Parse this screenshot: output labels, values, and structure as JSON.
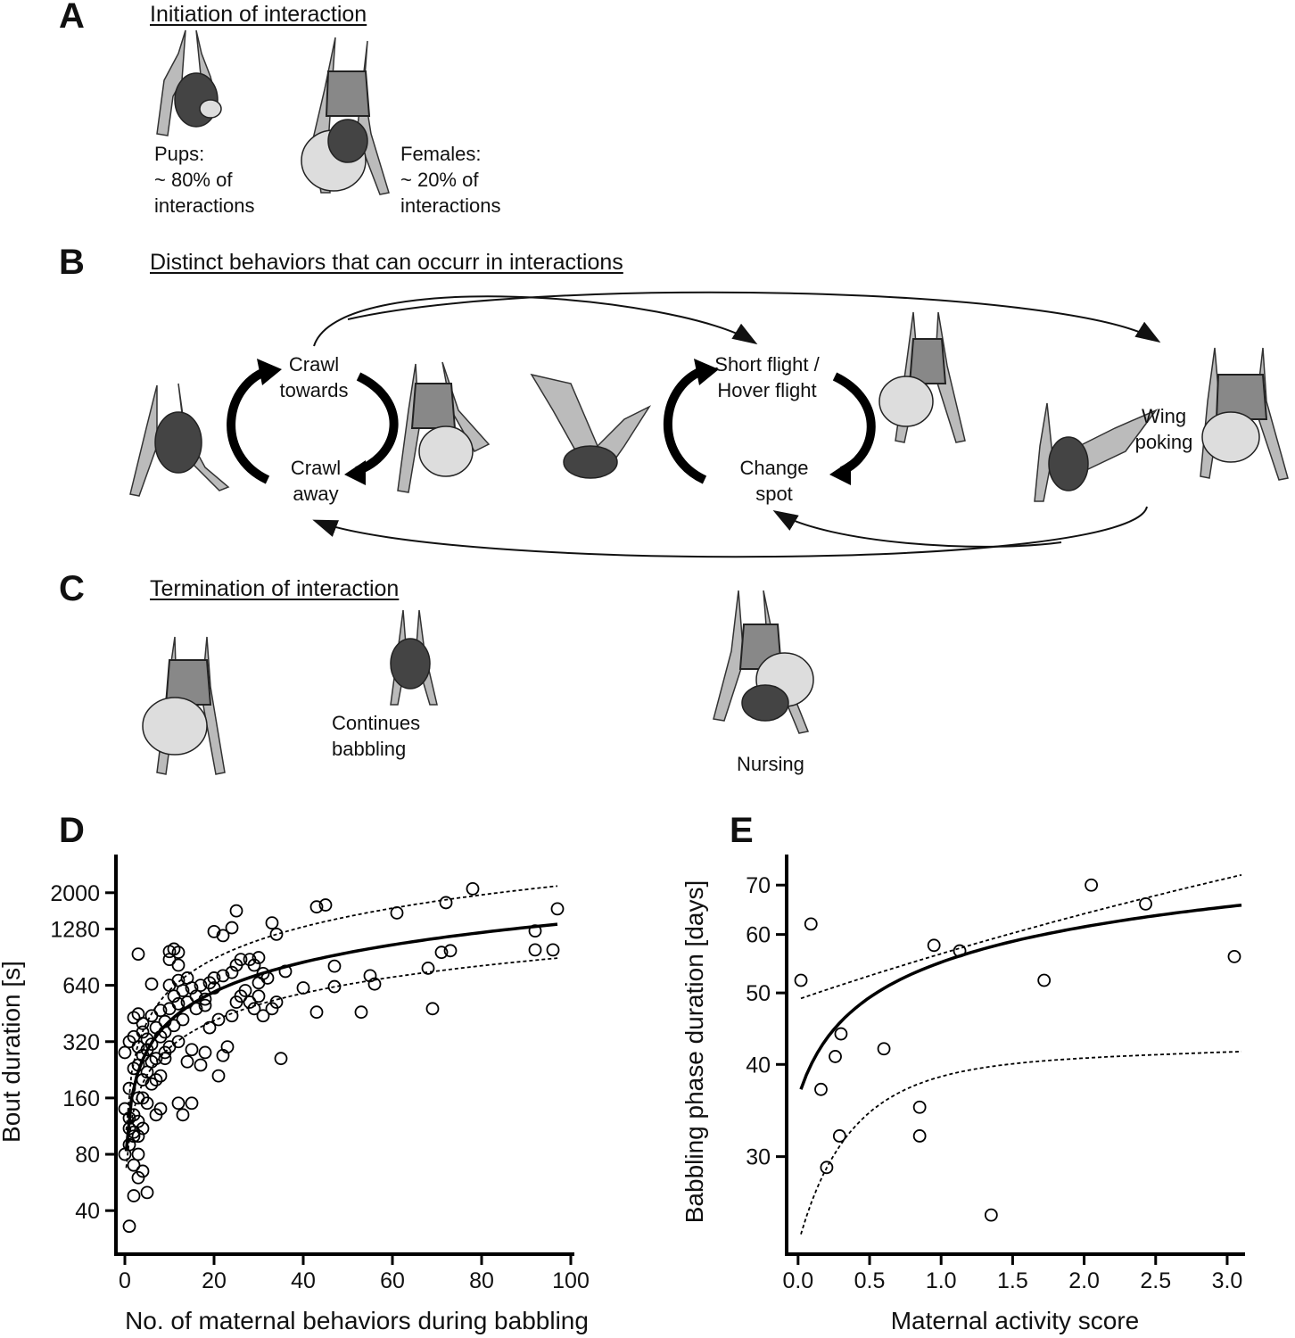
{
  "panel_a": {
    "letter": "A",
    "title": "Initiation of interaction",
    "pups_label": "Pups:",
    "pups_pct": "~ 80% of",
    "pups_word": "interactions",
    "females_label": "Females:",
    "females_pct": "~ 20% of",
    "females_word": "interactions"
  },
  "panel_b": {
    "letter": "B",
    "title": "Distinct behaviors that can occurr in interactions",
    "crawl_towards": [
      "Crawl",
      "towards"
    ],
    "crawl_away": [
      "Crawl",
      "away"
    ],
    "short_flight": [
      "Short flight /",
      "Hover flight"
    ],
    "change_spot": [
      "Change",
      "spot"
    ],
    "wing_poking": [
      "Wing",
      "poking"
    ]
  },
  "panel_c": {
    "letter": "C",
    "title": "Termination of interaction",
    "continues": [
      "Continues",
      "babbling"
    ],
    "nursing": "Nursing"
  },
  "chart_data": [
    {
      "panel": "D",
      "type": "scatter",
      "xlabel": "No. of maternal behaviors during babbling",
      "ylabel": "Bout duration [s]",
      "x_ticks": [
        0,
        20,
        40,
        60,
        80,
        100
      ],
      "y_ticks": [
        40,
        80,
        160,
        320,
        640,
        1280,
        2000
      ],
      "y_scale": "log",
      "xlim": [
        -2,
        100
      ],
      "ylim": [
        25,
        3200
      ],
      "points": [
        [
          1,
          33
        ],
        [
          2,
          48
        ],
        [
          5,
          50
        ],
        [
          3,
          60
        ],
        [
          4,
          65
        ],
        [
          2,
          70
        ],
        [
          3,
          80
        ],
        [
          0,
          80
        ],
        [
          1,
          90
        ],
        [
          2,
          100
        ],
        [
          1,
          110
        ],
        [
          3,
          100
        ],
        [
          2,
          105
        ],
        [
          3,
          120
        ],
        [
          4,
          110
        ],
        [
          1,
          125
        ],
        [
          0,
          140
        ],
        [
          2,
          130
        ],
        [
          5,
          150
        ],
        [
          4,
          160
        ],
        [
          7,
          130
        ],
        [
          6,
          190
        ],
        [
          1,
          180
        ],
        [
          3,
          160
        ],
        [
          4,
          200
        ],
        [
          5,
          220
        ],
        [
          8,
          210
        ],
        [
          3,
          240
        ],
        [
          2,
          230
        ],
        [
          6,
          250
        ],
        [
          4,
          270
        ],
        [
          5,
          290
        ],
        [
          7,
          260
        ],
        [
          9,
          280
        ],
        [
          3,
          300
        ],
        [
          0,
          280
        ],
        [
          1,
          320
        ],
        [
          2,
          340
        ],
        [
          6,
          310
        ],
        [
          8,
          340
        ],
        [
          10,
          300
        ],
        [
          12,
          320
        ],
        [
          4,
          360
        ],
        [
          5,
          330
        ],
        [
          7,
          380
        ],
        [
          9,
          410
        ],
        [
          11,
          390
        ],
        [
          13,
          420
        ],
        [
          2,
          430
        ],
        [
          3,
          450
        ],
        [
          6,
          440
        ],
        [
          8,
          470
        ],
        [
          10,
          480
        ],
        [
          12,
          510
        ],
        [
          14,
          520
        ],
        [
          16,
          480
        ],
        [
          18,
          500
        ],
        [
          4,
          400
        ],
        [
          9,
          360
        ],
        [
          11,
          560
        ],
        [
          13,
          600
        ],
        [
          15,
          620
        ],
        [
          17,
          640
        ],
        [
          10,
          640
        ],
        [
          12,
          680
        ],
        [
          14,
          700
        ],
        [
          19,
          660
        ],
        [
          20,
          700
        ],
        [
          22,
          720
        ],
        [
          24,
          750
        ],
        [
          25,
          820
        ],
        [
          10,
          880
        ],
        [
          12,
          820
        ],
        [
          11,
          1000
        ],
        [
          12,
          960
        ],
        [
          10,
          970
        ],
        [
          3,
          940
        ],
        [
          6,
          650
        ],
        [
          7,
          200
        ],
        [
          8,
          140
        ],
        [
          12,
          150
        ],
        [
          15,
          150
        ],
        [
          13,
          130
        ],
        [
          9,
          260
        ],
        [
          14,
          250
        ],
        [
          15,
          290
        ],
        [
          17,
          240
        ],
        [
          18,
          280
        ],
        [
          21,
          210
        ],
        [
          22,
          270
        ],
        [
          23,
          300
        ],
        [
          19,
          380
        ],
        [
          21,
          420
        ],
        [
          24,
          440
        ],
        [
          25,
          520
        ],
        [
          26,
          560
        ],
        [
          27,
          600
        ],
        [
          28,
          520
        ],
        [
          29,
          480
        ],
        [
          30,
          560
        ],
        [
          31,
          440
        ],
        [
          33,
          480
        ],
        [
          34,
          520
        ],
        [
          30,
          660
        ],
        [
          31,
          740
        ],
        [
          36,
          760
        ],
        [
          29,
          820
        ],
        [
          30,
          900
        ],
        [
          35,
          260
        ],
        [
          34,
          1200
        ],
        [
          33,
          1380
        ],
        [
          22,
          1180
        ],
        [
          20,
          1240
        ],
        [
          24,
          1300
        ],
        [
          25,
          1600
        ],
        [
          43,
          1680
        ],
        [
          45,
          1720
        ],
        [
          40,
          620
        ],
        [
          43,
          460
        ],
        [
          47,
          810
        ],
        [
          47,
          630
        ],
        [
          53,
          460
        ],
        [
          55,
          720
        ],
        [
          56,
          650
        ],
        [
          61,
          1560
        ],
        [
          68,
          790
        ],
        [
          69,
          480
        ],
        [
          71,
          960
        ],
        [
          72,
          1770
        ],
        [
          73,
          980
        ],
        [
          78,
          2100
        ],
        [
          92,
          1250
        ],
        [
          92,
          990
        ],
        [
          96,
          990
        ],
        [
          97,
          1640
        ],
        [
          26,
          880
        ],
        [
          16,
          560
        ],
        [
          18,
          540
        ],
        [
          20,
          620
        ],
        [
          28,
          880
        ],
        [
          32,
          700
        ]
      ],
      "fit_color": "#000000"
    },
    {
      "panel": "E",
      "type": "scatter",
      "xlabel": "Maternal activity score",
      "ylabel": "Babbling phase duration [days]",
      "x_ticks": [
        "0.0",
        "0.5",
        "1.0",
        "1.5",
        "2.0",
        "2.5",
        "3.0"
      ],
      "y_ticks": [
        30,
        40,
        50,
        60,
        70
      ],
      "y_scale": "log",
      "xlim": [
        -0.08,
        3.1
      ],
      "ylim": [
        22.5,
        77
      ],
      "points": [
        [
          0.02,
          52
        ],
        [
          0.09,
          62
        ],
        [
          0.16,
          37
        ],
        [
          0.2,
          29
        ],
        [
          0.26,
          41
        ],
        [
          0.29,
          32
        ],
        [
          0.3,
          44
        ],
        [
          0.6,
          42
        ],
        [
          0.85,
          35
        ],
        [
          0.85,
          32
        ],
        [
          0.95,
          58
        ],
        [
          1.13,
          57
        ],
        [
          1.35,
          25
        ],
        [
          1.72,
          52
        ],
        [
          2.05,
          70
        ],
        [
          2.43,
          66
        ],
        [
          3.05,
          56
        ]
      ],
      "fit_color": "#000000"
    }
  ]
}
